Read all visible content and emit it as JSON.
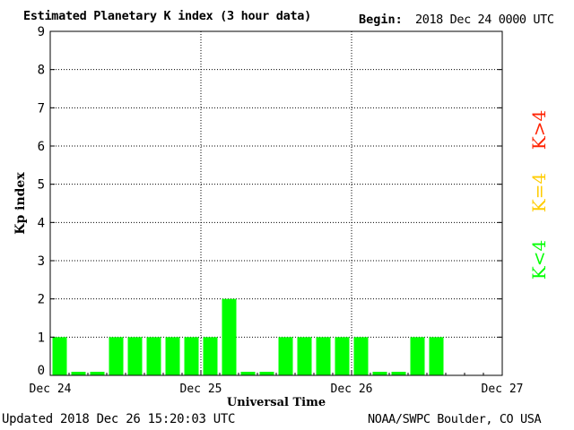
{
  "header": {
    "title": "Estimated Planetary K index (3 hour data)",
    "begin_label": "Begin:",
    "begin_value": "2018 Dec 24 0000 UTC"
  },
  "footer": {
    "updated": "Updated 2018 Dec 26 15:20:03 UTC",
    "source": "NOAA/SWPC Boulder, CO USA"
  },
  "legend": {
    "items": [
      {
        "label": "K<4",
        "color": "#00ff00"
      },
      {
        "label": "K=4",
        "color": "#ffcc00"
      },
      {
        "label": "K>4",
        "color": "#ff2200"
      }
    ]
  },
  "chart_data": {
    "type": "bar",
    "title": "Estimated Planetary K index (3 hour data)",
    "xlabel": "Universal Time",
    "ylabel": "Kp index",
    "ylim": [
      0,
      9
    ],
    "yticks": [
      "0",
      "1",
      "2",
      "3",
      "4",
      "5",
      "6",
      "7",
      "8",
      "9"
    ],
    "xticks": [
      "Dec 24",
      "Dec 25",
      "Dec 26",
      "Dec 27"
    ],
    "grid": true,
    "bar_color": "#00ff00",
    "interval_hours": 3,
    "values": [
      1,
      0,
      0,
      1,
      1,
      1,
      1,
      1,
      1,
      2,
      0,
      0,
      1,
      1,
      1,
      1,
      1,
      0,
      0,
      1,
      1
    ]
  }
}
